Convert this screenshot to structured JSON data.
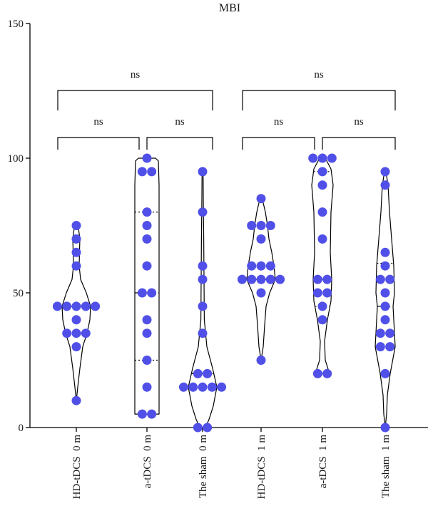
{
  "chart_data": {
    "type": "violin",
    "title": "MBI",
    "xlabel": "",
    "ylabel": "",
    "ylim": [
      0,
      150
    ],
    "yticks": [
      0,
      50,
      100,
      150
    ],
    "grid": false,
    "point_color": "#5050e8",
    "categories": [
      "HD-tDCS  0 m",
      "a-tDCS  0 m",
      "The sham  0 m",
      "HD-tDCS  1 m",
      "a-tDCS  1 m",
      "The sham  1 m"
    ],
    "series": [
      {
        "values": [
          75,
          70,
          65,
          60,
          45,
          45,
          45,
          45,
          45,
          40,
          35,
          35,
          35,
          30,
          10
        ],
        "median": 45,
        "q1": 35,
        "q3": 60,
        "violin_widths": [
          [
            10,
            0
          ],
          [
            15,
            0.1
          ],
          [
            22,
            0.25
          ],
          [
            30,
            0.45
          ],
          [
            35,
            0.75
          ],
          [
            40,
            0.95
          ],
          [
            45,
            1.0
          ],
          [
            50,
            0.7
          ],
          [
            55,
            0.3
          ],
          [
            60,
            0.2
          ],
          [
            65,
            0.22
          ],
          [
            70,
            0.25
          ],
          [
            74,
            0.15
          ],
          [
            75,
            0
          ]
        ]
      },
      {
        "values": [
          100,
          95,
          95,
          80,
          75,
          70,
          60,
          50,
          50,
          40,
          35,
          25,
          15,
          5,
          5
        ],
        "median": 50,
        "q1": 25,
        "q3": 80,
        "violin_widths": [
          [
            5,
            0.85
          ],
          [
            15,
            0.85
          ],
          [
            30,
            0.85
          ],
          [
            50,
            0.85
          ],
          [
            70,
            0.85
          ],
          [
            90,
            0.85
          ],
          [
            99,
            0.8
          ],
          [
            100,
            0.6
          ]
        ]
      },
      {
        "values": [
          95,
          80,
          60,
          55,
          45,
          35,
          20,
          20,
          15,
          15,
          15,
          15,
          15,
          0,
          0
        ],
        "median": 20,
        "q1": 20,
        "q3": 20,
        "violin_widths": [
          [
            0,
            0.2
          ],
          [
            3,
            0.45
          ],
          [
            8,
            0.75
          ],
          [
            15,
            1.0
          ],
          [
            22,
            0.7
          ],
          [
            30,
            0.3
          ],
          [
            40,
            0.12
          ],
          [
            55,
            0.1
          ],
          [
            70,
            0.08
          ],
          [
            85,
            0.05
          ],
          [
            93,
            0.04
          ],
          [
            95,
            0
          ]
        ]
      },
      {
        "values": [
          85,
          75,
          75,
          75,
          70,
          60,
          60,
          60,
          55,
          55,
          55,
          55,
          55,
          50,
          25
        ],
        "median": 55,
        "q1": 55,
        "q3": 55,
        "violin_widths": [
          [
            25,
            0
          ],
          [
            30,
            0.15
          ],
          [
            38,
            0.25
          ],
          [
            45,
            0.35
          ],
          [
            50,
            0.6
          ],
          [
            55,
            1.0
          ],
          [
            60,
            0.9
          ],
          [
            65,
            0.75
          ],
          [
            70,
            0.55
          ],
          [
            75,
            0.45
          ],
          [
            80,
            0.3
          ],
          [
            85,
            0.08
          ],
          [
            86,
            0
          ]
        ]
      },
      {
        "values": [
          100,
          100,
          100,
          95,
          90,
          80,
          70,
          55,
          55,
          50,
          50,
          45,
          40,
          20,
          20
        ],
        "median": 55,
        "q1": 45,
        "q3": 95,
        "violin_widths": [
          [
            20,
            0.5
          ],
          [
            25,
            0.2
          ],
          [
            32,
            0.15
          ],
          [
            40,
            0.35
          ],
          [
            47,
            0.6
          ],
          [
            55,
            0.65
          ],
          [
            65,
            0.55
          ],
          [
            80,
            0.6
          ],
          [
            90,
            0.75
          ],
          [
            96,
            0.6
          ],
          [
            100,
            0.2
          ]
        ]
      },
      {
        "values": [
          95,
          90,
          65,
          60,
          55,
          55,
          50,
          45,
          40,
          35,
          35,
          30,
          30,
          20,
          0
        ],
        "median": 45,
        "q1": 30,
        "q3": 61,
        "violin_widths": [
          [
            0,
            0
          ],
          [
            5,
            0.1
          ],
          [
            12,
            0.15
          ],
          [
            20,
            0.35
          ],
          [
            30,
            0.7
          ],
          [
            40,
            0.6
          ],
          [
            45,
            0.55
          ],
          [
            50,
            0.65
          ],
          [
            60,
            0.6
          ],
          [
            70,
            0.45
          ],
          [
            80,
            0.3
          ],
          [
            90,
            0.2
          ],
          [
            95,
            0.05
          ]
        ]
      }
    ],
    "comparisons": [
      {
        "from": 0,
        "to": 1,
        "label": "ns",
        "level": 1
      },
      {
        "from": 1,
        "to": 2,
        "label": "ns",
        "level": 1
      },
      {
        "from": 0,
        "to": 2,
        "label": "ns",
        "level": 2
      },
      {
        "from": 3,
        "to": 4,
        "label": "ns",
        "level": 1
      },
      {
        "from": 4,
        "to": 5,
        "label": "ns",
        "level": 1
      },
      {
        "from": 3,
        "to": 5,
        "label": "ns",
        "level": 2
      }
    ]
  }
}
